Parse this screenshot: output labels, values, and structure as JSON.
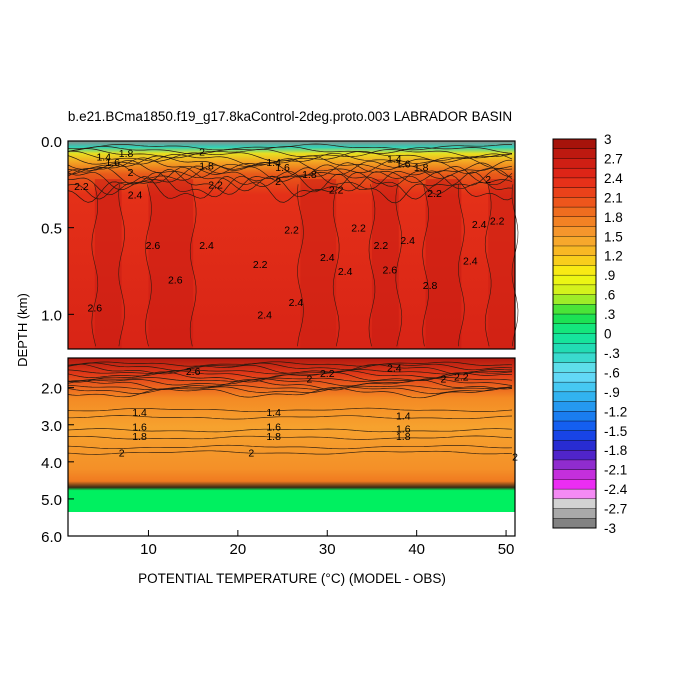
{
  "chart_data": {
    "type": "heatmap",
    "title": "b.e21.BCma1850.f19_g17.8kaControl-2deg.proto.003 LABRADOR BASIN",
    "xlabel": "POTENTIAL TEMPERATURE (°C) (MODEL - OBS)",
    "ylabel": "DEPTH (km)",
    "x_ticks": [
      "10",
      "20",
      "30",
      "40",
      "50"
    ],
    "xlim": [
      1,
      51
    ],
    "upper_panel": {
      "ylim": [
        0.0,
        1.2
      ],
      "y_ticks": [
        "0.0",
        "0.5",
        "1.0"
      ]
    },
    "lower_panel": {
      "ylim": [
        1.2,
        6.0
      ],
      "y_ticks": [
        "2.0",
        "3.0",
        "4.0",
        "5.0",
        "6.0"
      ],
      "bottom_fill_value": 0,
      "bottom_fill_depth": [
        4.2,
        5.4
      ]
    },
    "colorbar": {
      "range": [
        -3,
        3
      ],
      "step": 0.15,
      "labels": [
        "3",
        "2.7",
        "2.4",
        "2.1",
        "1.8",
        "1.5",
        "1.2",
        ".9",
        ".6",
        ".3",
        "0",
        "-.3",
        "-.6",
        "-.9",
        "-1.2",
        "-1.5",
        "-1.8",
        "-2.1",
        "-2.4",
        "-2.7",
        "-3"
      ]
    },
    "contour_labels": [
      {
        "text": "1.4",
        "x": 5,
        "depth": 0.09
      },
      {
        "text": "1.6",
        "x": 6,
        "depth": 0.12
      },
      {
        "text": "1.8",
        "x": 7.5,
        "depth": 0.07
      },
      {
        "text": "1.8",
        "x": 16.5,
        "depth": 0.14
      },
      {
        "text": "2",
        "x": 16,
        "depth": 0.06
      },
      {
        "text": "1.4",
        "x": 24,
        "depth": 0.12
      },
      {
        "text": "1.6",
        "x": 25,
        "depth": 0.15
      },
      {
        "text": "1.8",
        "x": 28,
        "depth": 0.19
      },
      {
        "text": "1.4",
        "x": 37.5,
        "depth": 0.1
      },
      {
        "text": "1.6",
        "x": 38.5,
        "depth": 0.13
      },
      {
        "text": "1.8",
        "x": 40.5,
        "depth": 0.15
      },
      {
        "text": "2",
        "x": 48,
        "depth": 0.22
      },
      {
        "text": "2.2",
        "x": 2.5,
        "depth": 0.26
      },
      {
        "text": "2",
        "x": 8,
        "depth": 0.18
      },
      {
        "text": "2.4",
        "x": 8.5,
        "depth": 0.31
      },
      {
        "text": "2.2",
        "x": 17.5,
        "depth": 0.25
      },
      {
        "text": "2",
        "x": 24.5,
        "depth": 0.23
      },
      {
        "text": "2.2",
        "x": 31,
        "depth": 0.28
      },
      {
        "text": "2.2",
        "x": 42,
        "depth": 0.3
      },
      {
        "text": "2.2",
        "x": 49,
        "depth": 0.46
      },
      {
        "text": "2.6",
        "x": 10.5,
        "depth": 0.6
      },
      {
        "text": "2.4",
        "x": 16.5,
        "depth": 0.6
      },
      {
        "text": "2.6",
        "x": 13,
        "depth": 0.8
      },
      {
        "text": "2.2",
        "x": 22.5,
        "depth": 0.71
      },
      {
        "text": "2.2",
        "x": 26,
        "depth": 0.51
      },
      {
        "text": "2.2",
        "x": 33.5,
        "depth": 0.5
      },
      {
        "text": "2.4",
        "x": 30,
        "depth": 0.67
      },
      {
        "text": "2.4",
        "x": 32,
        "depth": 0.75
      },
      {
        "text": "2.2",
        "x": 36,
        "depth": 0.6
      },
      {
        "text": "2.4",
        "x": 39,
        "depth": 0.57
      },
      {
        "text": "2.6",
        "x": 37,
        "depth": 0.74
      },
      {
        "text": "2.8",
        "x": 41.5,
        "depth": 0.83
      },
      {
        "text": "2.4",
        "x": 46,
        "depth": 0.69
      },
      {
        "text": "2.4",
        "x": 47,
        "depth": 0.48
      },
      {
        "text": "2.6",
        "x": 4,
        "depth": 0.96
      },
      {
        "text": "2.4",
        "x": 23,
        "depth": 1.0
      },
      {
        "text": "2.4",
        "x": 26.5,
        "depth": 0.93
      },
      {
        "text": "2.4",
        "x": 37.5,
        "depth": 1.45
      },
      {
        "text": "2.6",
        "x": 15,
        "depth": 1.55
      },
      {
        "text": "2",
        "x": 28,
        "depth": 1.75
      },
      {
        "text": "2.2",
        "x": 30,
        "depth": 1.6
      },
      {
        "text": "2",
        "x": 43,
        "depth": 1.75
      },
      {
        "text": "2.2",
        "x": 45,
        "depth": 1.7
      },
      {
        "text": "1.4",
        "x": 9,
        "depth": 2.65
      },
      {
        "text": "1.6",
        "x": 9,
        "depth": 3.05
      },
      {
        "text": "1.8",
        "x": 9,
        "depth": 3.3
      },
      {
        "text": "1.4",
        "x": 24,
        "depth": 2.65
      },
      {
        "text": "1.6",
        "x": 24,
        "depth": 3.05
      },
      {
        "text": "1.8",
        "x": 24,
        "depth": 3.3
      },
      {
        "text": "1.4",
        "x": 38.5,
        "depth": 2.75
      },
      {
        "text": "1.6",
        "x": 38.5,
        "depth": 3.1
      },
      {
        "text": "1.8",
        "x": 38.5,
        "depth": 3.3
      },
      {
        "text": "2",
        "x": 7,
        "depth": 3.75
      },
      {
        "text": "2",
        "x": 21.5,
        "depth": 3.75
      },
      {
        "text": "2",
        "x": 51,
        "depth": 3.85
      }
    ]
  }
}
